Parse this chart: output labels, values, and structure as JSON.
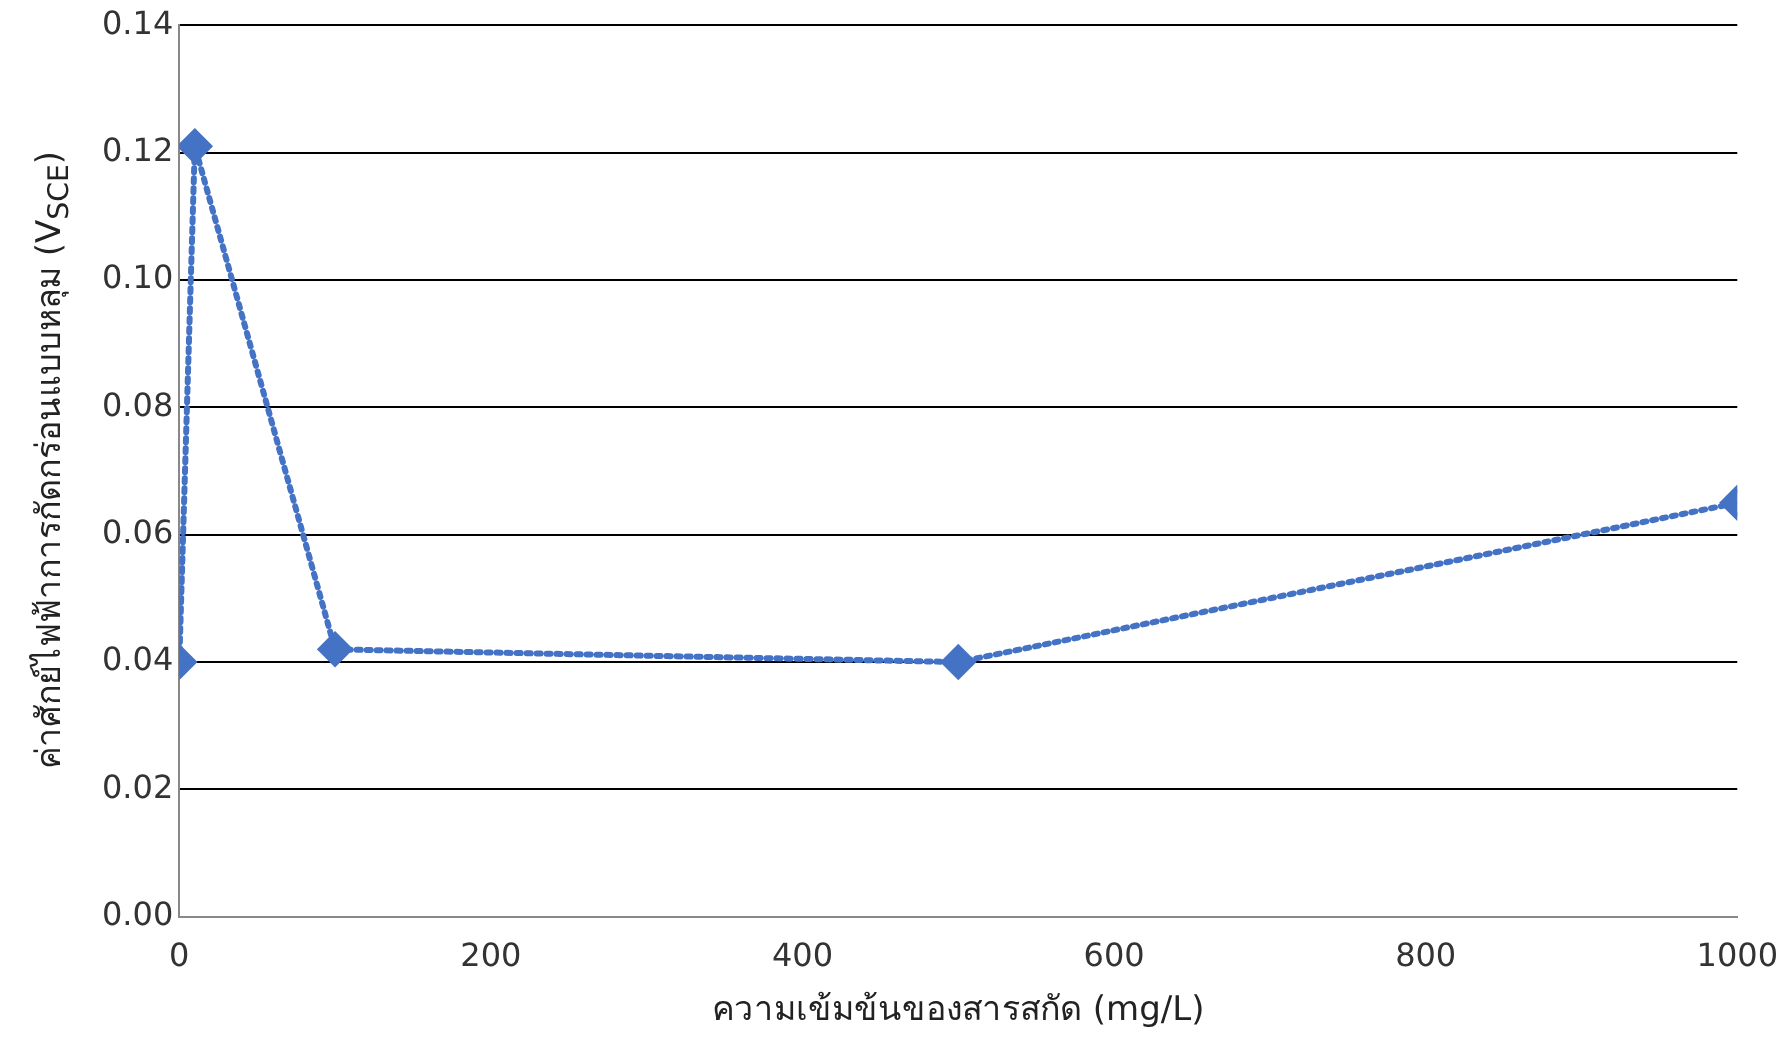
{
  "chart_data": {
    "type": "line",
    "xlabel": "ความเข้มข้นของสารสกัด (mg/L)",
    "ylabel": "ค่าศักย์ไฟฟ้าการกัดกร่อนแบบหลุม (V$_{SCE}$)",
    "x": [
      0,
      10,
      100,
      500,
      1000
    ],
    "series": [
      {
        "color": "#4472c4",
        "values": [
          0.04,
          0.121,
          0.042,
          0.04,
          0.065
        ]
      }
    ],
    "xlim": [
      0,
      1000
    ],
    "xticks": [
      0,
      200,
      400,
      600,
      800,
      1000
    ],
    "ylim": [
      0,
      0.14
    ],
    "yticks": [
      {
        "value": 0,
        "label": "0.00"
      },
      0.02,
      0.04,
      0.06,
      0.08,
      {
        "value": 0.1,
        "label": "0.10"
      },
      0.12,
      0.14
    ],
    "grid": "y",
    "marker": "diamond",
    "line_style": "dotted",
    "legend": false
  }
}
